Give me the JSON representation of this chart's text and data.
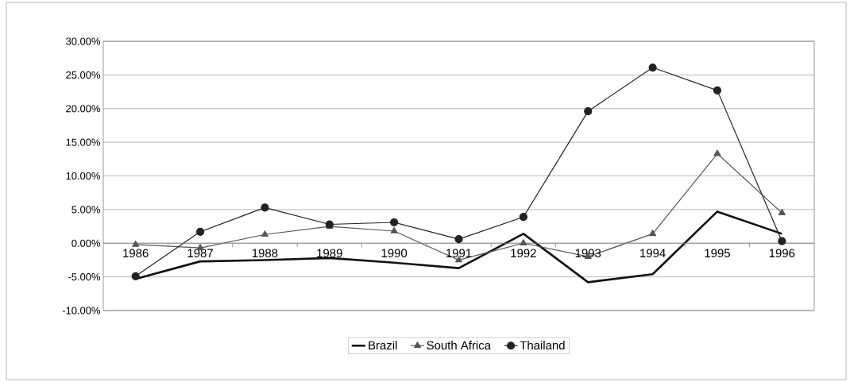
{
  "chart_data": {
    "type": "line",
    "categories": [
      "1986",
      "1987",
      "1988",
      "1989",
      "1990",
      "1991",
      "1992",
      "1993",
      "1994",
      "1995",
      "1996"
    ],
    "series": [
      {
        "name": "Brazil",
        "color": "#111111",
        "marker": "none",
        "values": [
          -5.3,
          -2.7,
          -2.5,
          -2.2,
          -2.9,
          -3.7,
          1.4,
          -5.8,
          -4.6,
          4.7,
          1.4
        ]
      },
      {
        "name": "South Africa",
        "color": "#555555",
        "marker": "triangle",
        "values": [
          -0.2,
          -0.7,
          1.3,
          2.5,
          1.8,
          -2.5,
          0.0,
          -2.0,
          1.4,
          13.3,
          4.5
        ]
      },
      {
        "name": "Thailand",
        "color": "#222222",
        "marker": "circle",
        "values": [
          -4.9,
          1.7,
          5.3,
          2.8,
          3.1,
          0.6,
          3.9,
          19.6,
          26.1,
          22.7,
          0.3
        ]
      }
    ],
    "ylim": [
      -10,
      30
    ],
    "yticks": [
      {
        "value": -10,
        "label": "-10.00%"
      },
      {
        "value": -5,
        "label": "-5.00%"
      },
      {
        "value": 0,
        "label": "0.00%"
      },
      {
        "value": 5,
        "label": "5.00%"
      },
      {
        "value": 10,
        "label": "10.00%"
      },
      {
        "value": 15,
        "label": "15.00%"
      },
      {
        "value": 20,
        "label": "20.00%"
      },
      {
        "value": 25,
        "label": "25.00%"
      },
      {
        "value": 30,
        "label": "30.00%"
      }
    ],
    "grid": "y",
    "legend": "bottom"
  }
}
